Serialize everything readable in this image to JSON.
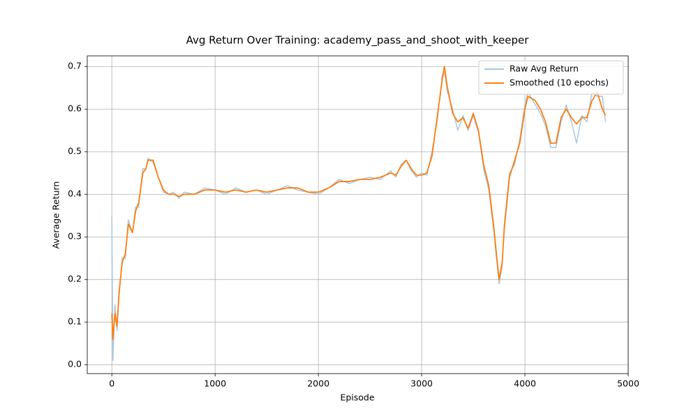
{
  "chart_data": {
    "type": "line",
    "title": "Avg Return Over Training: academy_pass_and_shoot_with_keeper",
    "x_label": "Episode",
    "y_label": "Average Return",
    "x": [
      0,
      10,
      30,
      50,
      70,
      100,
      130,
      160,
      200,
      230,
      260,
      300,
      330,
      350,
      400,
      450,
      500,
      550,
      600,
      650,
      700,
      800,
      900,
      1000,
      1100,
      1200,
      1300,
      1400,
      1500,
      1600,
      1700,
      1800,
      1900,
      2000,
      2100,
      2200,
      2300,
      2400,
      2500,
      2600,
      2700,
      2750,
      2800,
      2850,
      2900,
      2950,
      3000,
      3050,
      3100,
      3150,
      3200,
      3220,
      3250,
      3300,
      3350,
      3400,
      3450,
      3500,
      3550,
      3600,
      3650,
      3700,
      3720,
      3750,
      3780,
      3800,
      3850,
      3900,
      3950,
      4000,
      4030,
      4100,
      4150,
      4200,
      4250,
      4300,
      4350,
      4400,
      4450,
      4500,
      4550,
      4600,
      4650,
      4700,
      4750,
      4780
    ],
    "series": [
      {
        "name": "Raw Avg Return",
        "color": "#a6c8e3",
        "values": [
          0.35,
          0.01,
          0.14,
          0.08,
          0.16,
          0.25,
          0.25,
          0.34,
          0.31,
          0.37,
          0.37,
          0.46,
          0.46,
          0.485,
          0.475,
          0.44,
          0.405,
          0.4,
          0.405,
          0.39,
          0.405,
          0.4,
          0.415,
          0.41,
          0.4,
          0.415,
          0.405,
          0.41,
          0.4,
          0.41,
          0.42,
          0.41,
          0.405,
          0.4,
          0.415,
          0.435,
          0.425,
          0.435,
          0.44,
          0.435,
          0.455,
          0.44,
          0.47,
          0.48,
          0.455,
          0.44,
          0.45,
          0.445,
          0.5,
          0.57,
          0.68,
          0.69,
          0.64,
          0.6,
          0.55,
          0.585,
          0.55,
          0.585,
          0.545,
          0.46,
          0.41,
          0.31,
          0.26,
          0.19,
          0.23,
          0.33,
          0.45,
          0.47,
          0.53,
          0.61,
          0.64,
          0.61,
          0.59,
          0.56,
          0.51,
          0.51,
          0.57,
          0.61,
          0.57,
          0.52,
          0.585,
          0.57,
          0.64,
          0.63,
          0.63,
          0.57
        ]
      },
      {
        "name": "Smoothed (10 epochs)",
        "color": "#ff7f0e",
        "values": [
          0.12,
          0.06,
          0.12,
          0.09,
          0.17,
          0.24,
          0.26,
          0.33,
          0.31,
          0.36,
          0.38,
          0.45,
          0.46,
          0.48,
          0.48,
          0.44,
          0.41,
          0.4,
          0.4,
          0.395,
          0.4,
          0.4,
          0.41,
          0.41,
          0.405,
          0.41,
          0.405,
          0.41,
          0.405,
          0.41,
          0.415,
          0.415,
          0.405,
          0.405,
          0.415,
          0.43,
          0.43,
          0.435,
          0.435,
          0.44,
          0.45,
          0.445,
          0.465,
          0.48,
          0.46,
          0.445,
          0.445,
          0.45,
          0.49,
          0.58,
          0.67,
          0.7,
          0.65,
          0.59,
          0.57,
          0.58,
          0.555,
          0.59,
          0.55,
          0.47,
          0.42,
          0.32,
          0.27,
          0.2,
          0.24,
          0.32,
          0.44,
          0.48,
          0.52,
          0.6,
          0.63,
          0.62,
          0.6,
          0.57,
          0.52,
          0.52,
          0.58,
          0.6,
          0.58,
          0.565,
          0.58,
          0.58,
          0.62,
          0.64,
          0.6,
          0.585
        ]
      }
    ],
    "xlim": [
      -238,
      5000
    ],
    "xticks": [
      0,
      1000,
      2000,
      3000,
      4000,
      5000
    ],
    "ylim": [
      -0.021,
      0.725
    ],
    "yticks": [
      {
        "value": 0,
        "label": "0.0"
      },
      0.1,
      0.2,
      0.3,
      0.4,
      0.5,
      0.6,
      0.7
    ],
    "grid": true,
    "legend": "upper right"
  }
}
